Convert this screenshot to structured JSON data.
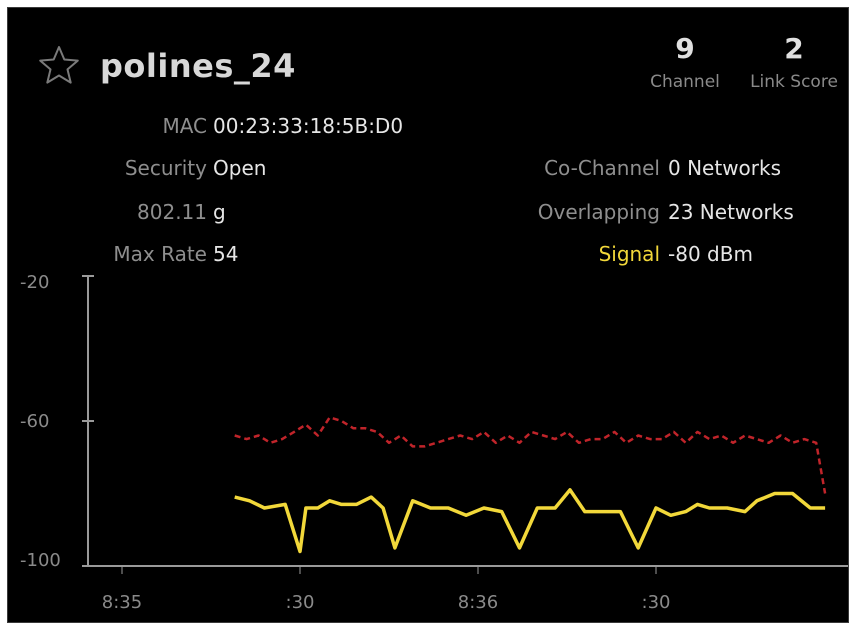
{
  "network": {
    "ssid": "polines_24",
    "starred": false,
    "channel": {
      "value": "9",
      "label": "Channel"
    },
    "link_score": {
      "value": "2",
      "label": "Link Score"
    }
  },
  "details_left": [
    {
      "label": "MAC",
      "value": "00:23:33:18:5B:D0"
    },
    {
      "label": "Security",
      "value": "Open"
    },
    {
      "label": "802.11",
      "value": "g"
    },
    {
      "label": "Max Rate",
      "value": "54"
    }
  ],
  "details_right": [
    {
      "label": "Co-Channel",
      "value": "0 Networks"
    },
    {
      "label": "Overlapping",
      "value": "23 Networks"
    },
    {
      "label": "Signal",
      "value": "-80 dBm"
    }
  ],
  "colors": {
    "signal": "#f2d83a",
    "noise": "#c0242a",
    "axis": "#9a9a9a",
    "background": "#000000"
  },
  "chart_data": {
    "type": "line",
    "ylim": [
      -100,
      -20
    ],
    "yticks": [
      "-20",
      "-60",
      "-100"
    ],
    "xticks": [
      "8:35",
      ":30",
      "8:36",
      ":30"
    ],
    "x_range_seconds": [
      0,
      120
    ],
    "xtick_positions_seconds": [
      0,
      30,
      60,
      90
    ],
    "series": [
      {
        "id": "signal",
        "style": "solid",
        "x": [
          19,
          21.5,
          24,
          27.5,
          30,
          31,
          33,
          35,
          37,
          39.5,
          42,
          44,
          46,
          49,
          52,
          55,
          58,
          61,
          64,
          67,
          70,
          73,
          75.5,
          78,
          81,
          84,
          87,
          90,
          92.5,
          95,
          97,
          99,
          102,
          105,
          107,
          110,
          113,
          116,
          118.5
        ],
        "values": [
          -81,
          -82,
          -84,
          -83,
          -96,
          -84,
          -84,
          -82,
          -83,
          -83,
          -81,
          -84,
          -95,
          -82,
          -84,
          -84,
          -86,
          -84,
          -85,
          -95,
          -84,
          -84,
          -79,
          -85,
          -85,
          -85,
          -95,
          -84,
          -86,
          -85,
          -83,
          -84,
          -84,
          -85,
          -82,
          -80,
          -80,
          -84,
          -84
        ]
      },
      {
        "id": "noise-floor",
        "style": "dashed",
        "x": [
          19,
          21,
          23,
          25,
          27,
          29,
          31,
          33,
          35,
          37,
          39,
          41,
          43,
          45,
          47,
          49,
          51,
          53,
          55,
          57,
          59,
          61,
          63,
          65,
          67,
          69,
          71,
          73,
          75,
          77,
          79,
          81,
          83,
          85,
          87,
          89,
          91,
          93,
          95,
          97,
          99,
          101,
          103,
          105,
          107,
          109,
          111,
          113,
          115,
          117,
          118.5
        ],
        "values": [
          -64,
          -65,
          -64,
          -66,
          -65,
          -63,
          -61,
          -64,
          -59,
          -60,
          -62,
          -62,
          -63,
          -66,
          -64,
          -67,
          -67,
          -66,
          -65,
          -64,
          -65,
          -63,
          -66,
          -64,
          -66,
          -63,
          -64,
          -65,
          -63,
          -66,
          -65,
          -65,
          -63,
          -66,
          -64,
          -65,
          -65,
          -63,
          -66,
          -63,
          -65,
          -64,
          -66,
          -64,
          -65,
          -66,
          -64,
          -66,
          -65,
          -66,
          -80
        ]
      }
    ]
  }
}
